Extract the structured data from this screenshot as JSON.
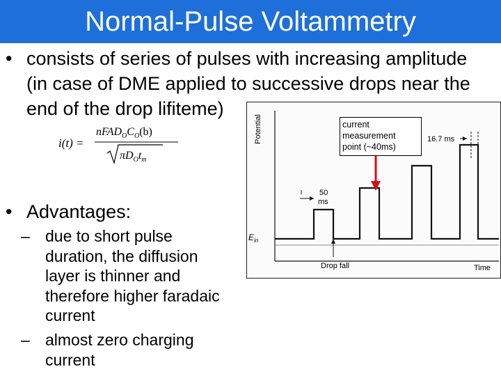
{
  "slide": {
    "title": "Normal-Pulse Voltammetry",
    "bullets": [
      {
        "marker": "•",
        "lines": [
          "consists of series of pulses with increasing amplitude",
          "(in case of DME applied to successive drops near the",
          "end of the drop lifiteme)"
        ]
      },
      {
        "marker": "•",
        "lines": [
          "Advantages:"
        ],
        "sub": [
          {
            "marker": "–",
            "lines": [
              "due to short pulse",
              "duration, the diffusion",
              "layer is thinner and",
              "therefore higher faradaic",
              "current"
            ]
          },
          {
            "marker": "–",
            "lines": [
              "almost zero charging",
              "current"
            ]
          }
        ]
      }
    ]
  },
  "formula": {
    "lhs": "i(t) =",
    "numerator": "nFAD",
    "numerator_sub_1": "O",
    "numerator_mid": "C",
    "numerator_sub_2": "O",
    "numerator_tail": "(b)",
    "denominator": "πD",
    "denominator_sub_1": "O",
    "denominator_mid": "t",
    "denominator_sub_2": "m"
  },
  "figure": {
    "y_axis_label": "Potential",
    "x_axis_label": "Time",
    "baseline_label": "E",
    "baseline_label_sub": "in",
    "pulse_width_value": "50",
    "pulse_width_unit": "ms",
    "interval_label": "16.7 ms",
    "drop_fall_label": "Drop fall",
    "callout_lines": [
      "current",
      "measurement",
      "point (~40ms)"
    ]
  },
  "colors": {
    "title_bar": "#1e6fd9",
    "title_text": "#ffffff",
    "callout_arrow": "#d0101a"
  }
}
